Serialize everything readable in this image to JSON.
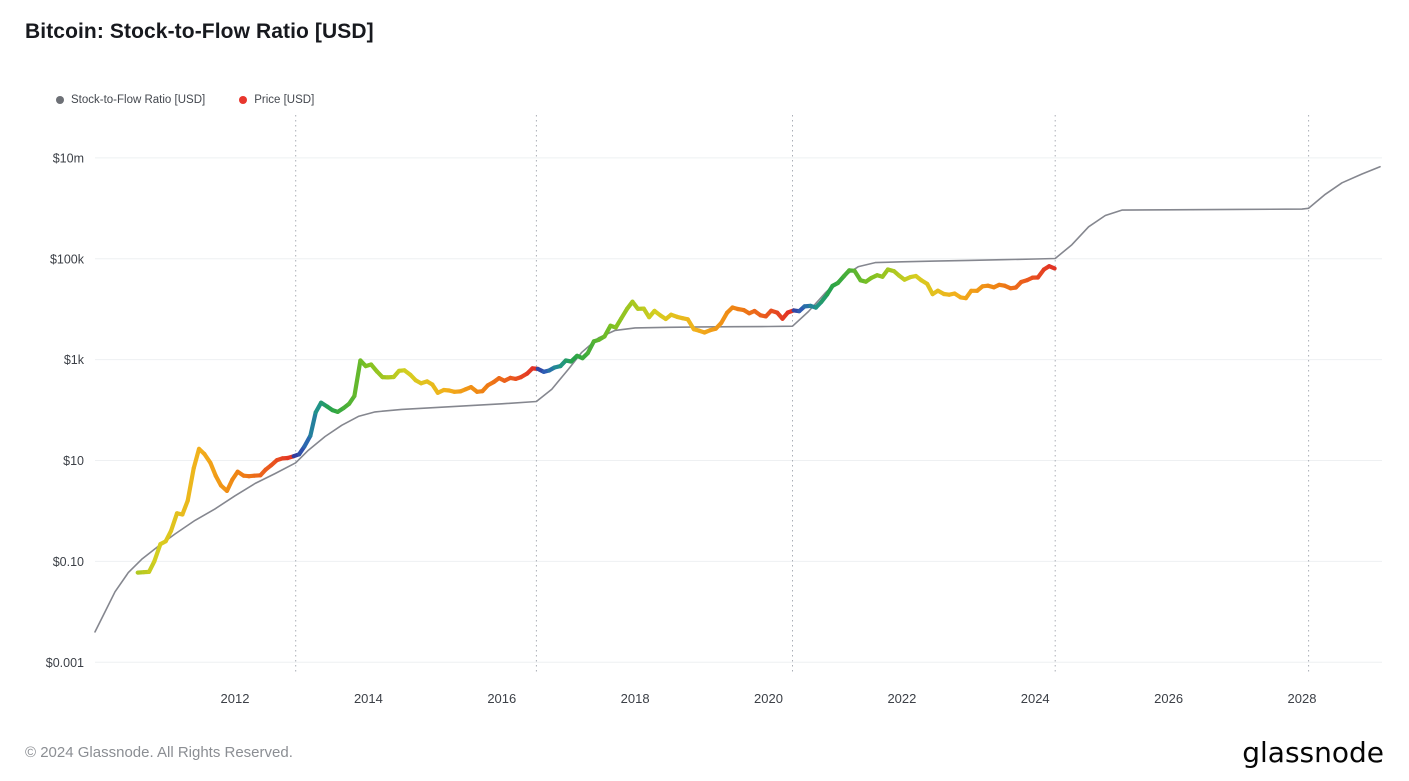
{
  "header": {
    "title": "Bitcoin: Stock-to-Flow Ratio [USD]"
  },
  "legend": {
    "items": [
      {
        "label": "Stock-to-Flow Ratio [USD]",
        "color": "#6d7076"
      },
      {
        "label": "Price [USD]",
        "color": "#e8362d"
      }
    ]
  },
  "footer": {
    "copyright": "© 2024 Glassnode. All Rights Reserved.",
    "logo_text": "glassnode"
  },
  "chart_data": {
    "type": "line",
    "title": "Bitcoin: Stock-to-Flow Ratio [USD]",
    "xlabel": "",
    "ylabel": "",
    "scale": "log-y",
    "grid": "horizontal",
    "legend_position": "top-left",
    "background": "#ffffff",
    "xlim": [
      2009.9,
      2029.2
    ],
    "ylim": [
      0.00056,
      70800000
    ],
    "x_ticks": [
      2012,
      2014,
      2016,
      2018,
      2020,
      2022,
      2024,
      2026,
      2028
    ],
    "y_ticks": [
      {
        "label": "$10m",
        "value": 10000000
      },
      {
        "label": "$100k",
        "value": 100000
      },
      {
        "label": "$1k",
        "value": 1000
      },
      {
        "label": "$10",
        "value": 10
      },
      {
        "label": "$0.10",
        "value": 0.1
      },
      {
        "label": "$0.001",
        "value": 0.001
      }
    ],
    "halving_lines": [
      2012.91,
      2016.52,
      2020.36,
      2024.3,
      2028.1
    ],
    "epoch_boundaries": [
      2009.03,
      2012.91,
      2016.52,
      2020.36,
      2024.3,
      2028.1
    ],
    "color_encoding": "price line colored by progress through halving epoch (blue after halving, red before next)",
    "series": [
      {
        "name": "Stock-to-Flow Ratio [USD]",
        "role": "model",
        "color": "#85878f",
        "points": [
          [
            2009.9,
            0.004
          ],
          [
            2010.05,
            0.01
          ],
          [
            2010.2,
            0.025
          ],
          [
            2010.4,
            0.06
          ],
          [
            2010.6,
            0.11
          ],
          [
            2010.85,
            0.2
          ],
          [
            2011.1,
            0.35
          ],
          [
            2011.4,
            0.65
          ],
          [
            2011.7,
            1.1
          ],
          [
            2012.0,
            2.0
          ],
          [
            2012.3,
            3.5
          ],
          [
            2012.6,
            5.5
          ],
          [
            2012.91,
            9.0
          ],
          [
            2013.1,
            16
          ],
          [
            2013.35,
            30
          ],
          [
            2013.6,
            50
          ],
          [
            2013.85,
            75
          ],
          [
            2014.1,
            92
          ],
          [
            2014.5,
            103
          ],
          [
            2015.0,
            112
          ],
          [
            2015.5,
            122
          ],
          [
            2016.0,
            133
          ],
          [
            2016.52,
            148
          ],
          [
            2016.75,
            260
          ],
          [
            2017.0,
            650
          ],
          [
            2017.2,
            1400
          ],
          [
            2017.45,
            2700
          ],
          [
            2017.7,
            3800
          ],
          [
            2018.0,
            4250
          ],
          [
            2018.5,
            4380
          ],
          [
            2019.0,
            4450
          ],
          [
            2019.5,
            4500
          ],
          [
            2020.0,
            4550
          ],
          [
            2020.36,
            4600
          ],
          [
            2020.6,
            9000
          ],
          [
            2020.85,
            21000
          ],
          [
            2021.1,
            43000
          ],
          [
            2021.35,
            70000
          ],
          [
            2021.6,
            84000
          ],
          [
            2022.0,
            87000
          ],
          [
            2022.5,
            90000
          ],
          [
            2023.0,
            93000
          ],
          [
            2023.5,
            96000
          ],
          [
            2024.0,
            99000
          ],
          [
            2024.3,
            101000
          ],
          [
            2024.55,
            190000
          ],
          [
            2024.8,
            430000
          ],
          [
            2025.05,
            720000
          ],
          [
            2025.3,
            920000
          ],
          [
            2026.0,
            935000
          ],
          [
            2027.0,
            950000
          ],
          [
            2028.0,
            965000
          ],
          [
            2028.1,
            1000000
          ],
          [
            2028.35,
            1900000
          ],
          [
            2028.6,
            3200000
          ],
          [
            2028.9,
            4800000
          ],
          [
            2029.17,
            6700000
          ]
        ]
      },
      {
        "name": "Price [USD]",
        "role": "price",
        "color_scale": [
          {
            "p": 0.0,
            "color": "#34399b"
          },
          {
            "p": 0.04,
            "color": "#2d5fb5"
          },
          {
            "p": 0.09,
            "color": "#21928f"
          },
          {
            "p": 0.15,
            "color": "#27a348"
          },
          {
            "p": 0.3,
            "color": "#7dc122"
          },
          {
            "p": 0.47,
            "color": "#d6ce20"
          },
          {
            "p": 0.63,
            "color": "#f2b01c"
          },
          {
            "p": 0.78,
            "color": "#ef8414"
          },
          {
            "p": 0.9,
            "color": "#ea5a1e"
          },
          {
            "p": 1.0,
            "color": "#e12f26"
          }
        ],
        "points": [
          [
            2010.54,
            0.06
          ],
          [
            2010.63,
            0.061
          ],
          [
            2010.71,
            0.062
          ],
          [
            2010.79,
            0.1
          ],
          [
            2010.88,
            0.22
          ],
          [
            2010.96,
            0.25
          ],
          [
            2011.04,
            0.4
          ],
          [
            2011.13,
            0.9
          ],
          [
            2011.21,
            0.85
          ],
          [
            2011.29,
            1.6
          ],
          [
            2011.38,
            7.0
          ],
          [
            2011.46,
            17.0
          ],
          [
            2011.54,
            13.5
          ],
          [
            2011.63,
            9.0
          ],
          [
            2011.71,
            5.0
          ],
          [
            2011.79,
            3.2
          ],
          [
            2011.88,
            2.5
          ],
          [
            2011.96,
            4.2
          ],
          [
            2012.04,
            6.0
          ],
          [
            2012.13,
            5.0
          ],
          [
            2012.21,
            4.9
          ],
          [
            2012.29,
            5.0
          ],
          [
            2012.38,
            5.1
          ],
          [
            2012.46,
            6.6
          ],
          [
            2012.54,
            8.0
          ],
          [
            2012.63,
            10.2
          ],
          [
            2012.71,
            11.0
          ],
          [
            2012.79,
            11.2
          ],
          [
            2012.88,
            12.2
          ],
          [
            2012.96,
            13.3
          ],
          [
            2013.04,
            19
          ],
          [
            2013.13,
            31
          ],
          [
            2013.21,
            90
          ],
          [
            2013.29,
            140
          ],
          [
            2013.38,
            118
          ],
          [
            2013.46,
            100
          ],
          [
            2013.54,
            92
          ],
          [
            2013.63,
            110
          ],
          [
            2013.71,
            133
          ],
          [
            2013.79,
            190
          ],
          [
            2013.88,
            960
          ],
          [
            2013.96,
            745
          ],
          [
            2014.04,
            800
          ],
          [
            2014.13,
            580
          ],
          [
            2014.21,
            450
          ],
          [
            2014.29,
            445
          ],
          [
            2014.38,
            452
          ],
          [
            2014.46,
            600
          ],
          [
            2014.54,
            615
          ],
          [
            2014.63,
            500
          ],
          [
            2014.71,
            390
          ],
          [
            2014.79,
            340
          ],
          [
            2014.88,
            370
          ],
          [
            2014.96,
            320
          ],
          [
            2015.04,
            220
          ],
          [
            2015.13,
            250
          ],
          [
            2015.21,
            245
          ],
          [
            2015.29,
            230
          ],
          [
            2015.38,
            235
          ],
          [
            2015.46,
            260
          ],
          [
            2015.54,
            285
          ],
          [
            2015.63,
            230
          ],
          [
            2015.71,
            237
          ],
          [
            2015.79,
            310
          ],
          [
            2015.88,
            360
          ],
          [
            2015.96,
            430
          ],
          [
            2016.04,
            380
          ],
          [
            2016.13,
            435
          ],
          [
            2016.21,
            415
          ],
          [
            2016.29,
            450
          ],
          [
            2016.38,
            530
          ],
          [
            2016.46,
            670
          ],
          [
            2016.54,
            655
          ],
          [
            2016.63,
            575
          ],
          [
            2016.71,
            610
          ],
          [
            2016.79,
            700
          ],
          [
            2016.88,
            745
          ],
          [
            2016.96,
            960
          ],
          [
            2017.04,
            920
          ],
          [
            2017.13,
            1190
          ],
          [
            2017.21,
            1070
          ],
          [
            2017.29,
            1350
          ],
          [
            2017.38,
            2300
          ],
          [
            2017.46,
            2480
          ],
          [
            2017.54,
            2870
          ],
          [
            2017.63,
            4700
          ],
          [
            2017.71,
            4340
          ],
          [
            2017.79,
            6470
          ],
          [
            2017.88,
            10200
          ],
          [
            2017.96,
            14100
          ],
          [
            2018.04,
            10200
          ],
          [
            2018.13,
            10300
          ],
          [
            2018.21,
            6930
          ],
          [
            2018.29,
            9240
          ],
          [
            2018.38,
            7500
          ],
          [
            2018.46,
            6400
          ],
          [
            2018.54,
            7780
          ],
          [
            2018.63,
            7030
          ],
          [
            2018.71,
            6620
          ],
          [
            2018.79,
            6300
          ],
          [
            2018.88,
            4020
          ],
          [
            2018.96,
            3740
          ],
          [
            2019.04,
            3460
          ],
          [
            2019.13,
            3850
          ],
          [
            2019.21,
            4100
          ],
          [
            2019.29,
            5320
          ],
          [
            2019.38,
            8550
          ],
          [
            2019.46,
            10800
          ],
          [
            2019.54,
            10080
          ],
          [
            2019.63,
            9600
          ],
          [
            2019.71,
            8300
          ],
          [
            2019.79,
            9200
          ],
          [
            2019.88,
            7560
          ],
          [
            2019.96,
            7190
          ],
          [
            2020.04,
            9350
          ],
          [
            2020.13,
            8550
          ],
          [
            2020.21,
            6440
          ],
          [
            2020.29,
            8620
          ],
          [
            2020.38,
            9450
          ],
          [
            2020.46,
            9140
          ],
          [
            2020.54,
            11350
          ],
          [
            2020.63,
            11650
          ],
          [
            2020.71,
            10780
          ],
          [
            2020.79,
            13800
          ],
          [
            2020.88,
            19700
          ],
          [
            2020.96,
            29000
          ],
          [
            2021.04,
            33100
          ],
          [
            2021.13,
            45100
          ],
          [
            2021.21,
            58800
          ],
          [
            2021.29,
            57750
          ],
          [
            2021.38,
            37330
          ],
          [
            2021.46,
            35040
          ],
          [
            2021.54,
            41550
          ],
          [
            2021.63,
            47150
          ],
          [
            2021.71,
            43800
          ],
          [
            2021.79,
            61320
          ],
          [
            2021.88,
            57000
          ],
          [
            2021.96,
            46200
          ],
          [
            2022.04,
            38480
          ],
          [
            2022.13,
            43200
          ],
          [
            2022.21,
            45540
          ],
          [
            2022.29,
            37650
          ],
          [
            2022.38,
            31790
          ],
          [
            2022.46,
            19950
          ],
          [
            2022.54,
            23300
          ],
          [
            2022.63,
            20050
          ],
          [
            2022.71,
            19430
          ],
          [
            2022.79,
            20500
          ],
          [
            2022.88,
            17160
          ],
          [
            2022.96,
            16550
          ],
          [
            2023.04,
            23130
          ],
          [
            2023.13,
            23140
          ],
          [
            2023.21,
            28480
          ],
          [
            2023.29,
            29230
          ],
          [
            2023.38,
            27220
          ],
          [
            2023.46,
            30480
          ],
          [
            2023.54,
            29230
          ],
          [
            2023.63,
            25930
          ],
          [
            2023.71,
            26970
          ],
          [
            2023.79,
            34650
          ],
          [
            2023.88,
            37720
          ],
          [
            2023.96,
            42270
          ],
          [
            2024.04,
            42580
          ],
          [
            2024.13,
            61200
          ],
          [
            2024.21,
            71300
          ],
          [
            2024.29,
            64500
          ]
        ]
      }
    ]
  }
}
